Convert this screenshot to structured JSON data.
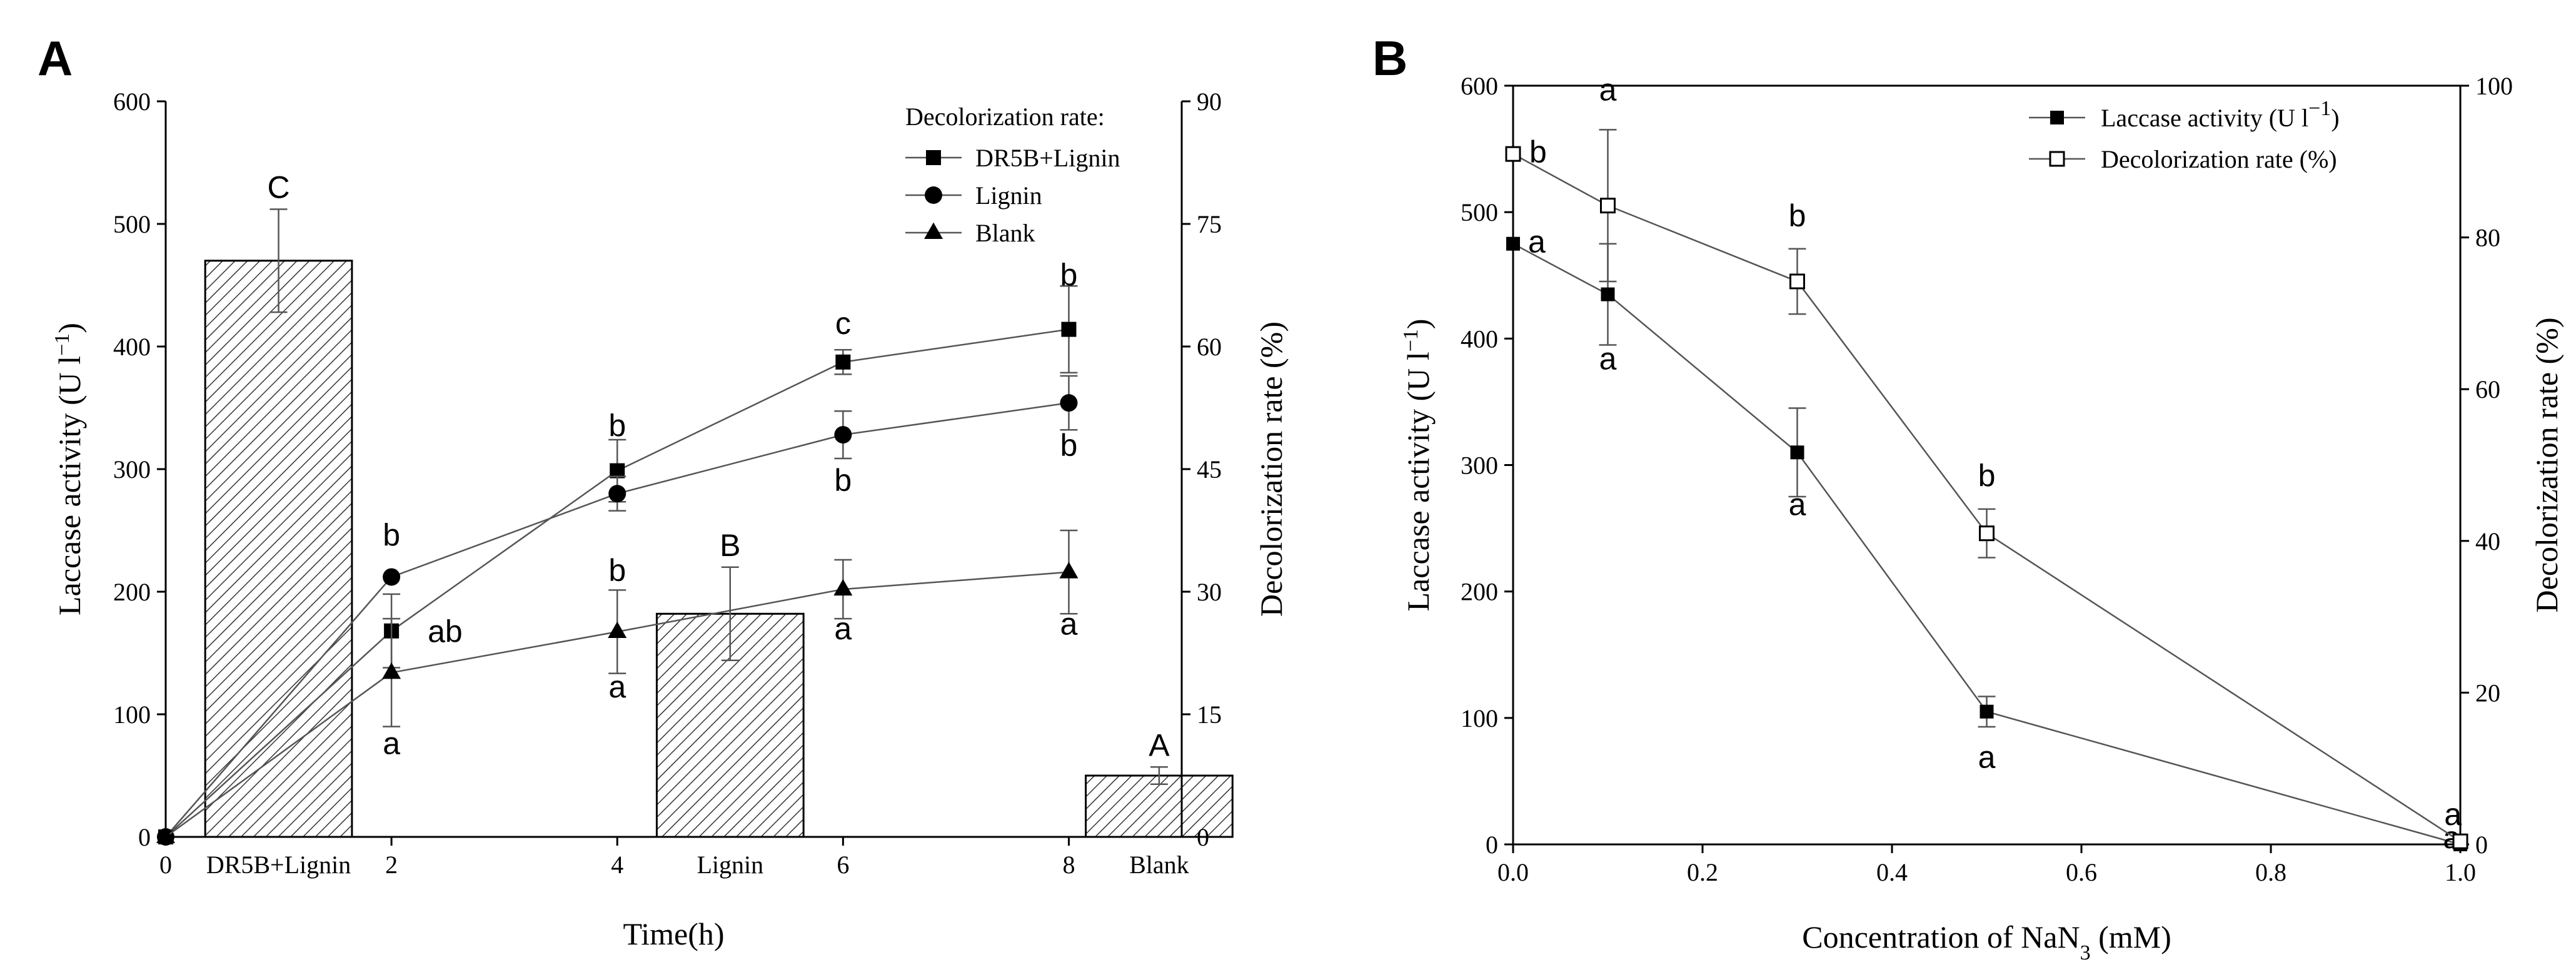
{
  "chart_data": [
    {
      "panel": "A",
      "type": "bar",
      "xlabel": "Time(h)",
      "ylabel_left": "Laccase activity (U l⁻¹)",
      "ylabel_right": "Decolorization rate (%)",
      "x_ticks": [
        "0",
        "2",
        "4",
        "6",
        "8"
      ],
      "x_range": [
        0,
        9
      ],
      "y_left_ticks": [
        "0",
        "100",
        "200",
        "300",
        "400",
        "500",
        "600"
      ],
      "y_left_range": [
        0,
        600
      ],
      "y_right_ticks": [
        "0",
        "15",
        "30",
        "45",
        "60",
        "75",
        "90"
      ],
      "y_right_range": [
        0,
        90
      ],
      "bars": {
        "axis": "left",
        "items": [
          {
            "category": "DR5B+Lignin",
            "value": 470,
            "error": 42,
            "label": "C"
          },
          {
            "category": "Lignin",
            "value": 182,
            "error": 38,
            "label": "B"
          },
          {
            "category": "Blank",
            "value": 50,
            "error": 7,
            "label": "A"
          }
        ]
      },
      "legend_title": "Decolorization rate:",
      "legend_position": "top-right",
      "series": [
        {
          "name": "DR5B+Lignin",
          "marker": "square",
          "axis": "right",
          "x": [
            0,
            2,
            4,
            6,
            8
          ],
          "y": [
            0,
            25.2,
            44.8,
            58.1,
            62.1
          ],
          "error": [
            0,
            4.5,
            3.8,
            1.5,
            5.3
          ],
          "labels": [
            "",
            "ab",
            "b",
            "c",
            "b"
          ]
        },
        {
          "name": "Lignin",
          "marker": "circle",
          "axis": "right",
          "x": [
            0,
            2,
            4,
            6,
            8
          ],
          "y": [
            0,
            31.8,
            42.0,
            49.2,
            53.1
          ],
          "error": [
            0,
            0,
            2.1,
            2.9,
            3.3
          ],
          "labels": [
            "",
            "b",
            "b",
            "b",
            "b"
          ]
        },
        {
          "name": "Blank",
          "marker": "triangle",
          "axis": "right",
          "x": [
            0,
            2,
            4,
            6,
            8
          ],
          "y": [
            0,
            20.1,
            25.1,
            30.3,
            32.4
          ],
          "error": [
            0,
            6.6,
            5.1,
            3.6,
            5.1
          ],
          "labels": [
            "",
            "a",
            "a",
            "a",
            "a"
          ]
        }
      ]
    },
    {
      "panel": "B",
      "type": "line",
      "xlabel": "Concentration of NaN₃ (mM)",
      "ylabel_left": "Laccase activity (U l⁻¹)",
      "ylabel_right": "Decolorization rate (%)",
      "x_ticks": [
        "0.0",
        "0.2",
        "0.4",
        "0.6",
        "0.8",
        "1.0"
      ],
      "x_range": [
        0,
        1.0
      ],
      "y_left_ticks": [
        "0",
        "100",
        "200",
        "300",
        "400",
        "500",
        "600"
      ],
      "y_left_range": [
        0,
        600
      ],
      "y_right_ticks": [
        "0",
        "20",
        "40",
        "60",
        "80",
        "100"
      ],
      "y_right_range": [
        0,
        100
      ],
      "legend_position": "top-right",
      "series": [
        {
          "name": "Laccase activity (U l⁻¹)",
          "marker": "filled-square",
          "axis": "left",
          "x": [
            0,
            0.1,
            0.3,
            0.5,
            1.0
          ],
          "y": [
            475,
            435,
            310,
            105,
            0
          ],
          "error": [
            0,
            40,
            35,
            12,
            0
          ],
          "labels": [
            "a",
            "a",
            "a",
            "a",
            "a"
          ]
        },
        {
          "name": "Decolorization rate (%)",
          "marker": "open-square",
          "axis": "right",
          "x": [
            0,
            0.1,
            0.3,
            0.5,
            1.0
          ],
          "y": [
            91,
            84.2,
            74.2,
            41.0,
            0.4
          ],
          "error": [
            0,
            10,
            4.3,
            3.2,
            0
          ],
          "labels": [
            "b",
            "a",
            "b",
            "b",
            "a"
          ]
        }
      ]
    }
  ]
}
